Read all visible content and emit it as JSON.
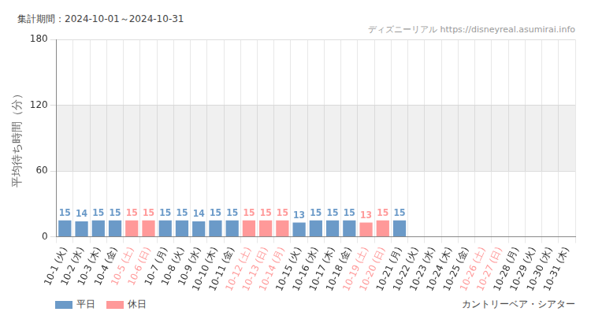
{
  "chart_data": {
    "type": "bar",
    "subtitle": "集計期間：2024-10-01～2024-10-31",
    "source": "ディズニーリアル https://disneyreal.asumirai.info",
    "title": "カントリーベア・シアター",
    "y_label": "平均待ち時間（分）",
    "categories": [
      "10-1 (火)",
      "10-2 (水)",
      "10-3 (木)",
      "10-4 (金)",
      "10-5 (土)",
      "10-6 (日)",
      "10-7 (月)",
      "10-8 (火)",
      "10-9 (水)",
      "10-10 (木)",
      "10-11 (金)",
      "10-12 (土)",
      "10-13 (日)",
      "10-14 (月)",
      "10-15 (火)",
      "10-16 (水)",
      "10-17 (木)",
      "10-18 (金)",
      "10-19 (土)",
      "10-20 (日)",
      "10-21 (月)",
      "10-22 (火)",
      "10-23 (水)",
      "10-24 (木)",
      "10-25 (金)",
      "10-26 (土)",
      "10-27 (日)",
      "10-28 (月)",
      "10-29 (火)",
      "10-30 (水)",
      "10-31 (木)"
    ],
    "holidays": [
      "10-5 (土)",
      "10-6 (日)",
      "10-12 (土)",
      "10-13 (日)",
      "10-14 (月)",
      "10-19 (土)",
      "10-20 (日)",
      "10-26 (土)",
      "10-27 (日)"
    ],
    "series": [
      {
        "name": "平日",
        "color": "#6b9ac8",
        "values": [
          15,
          14,
          15,
          15,
          null,
          null,
          15,
          15,
          14,
          15,
          15,
          null,
          null,
          null,
          13,
          15,
          15,
          15,
          null,
          null,
          15,
          null,
          null,
          null,
          null,
          null,
          null,
          null,
          null,
          null,
          null
        ]
      },
      {
        "name": "休日",
        "color": "#ff9999",
        "values": [
          null,
          null,
          null,
          null,
          15,
          15,
          null,
          null,
          null,
          null,
          null,
          15,
          15,
          15,
          null,
          null,
          null,
          null,
          13,
          15,
          null,
          null,
          null,
          null,
          null,
          null,
          null,
          null,
          null,
          null,
          null
        ]
      }
    ],
    "stacked": true,
    "ylim": [
      0,
      180
    ],
    "yticks": [
      0,
      60,
      120,
      180
    ],
    "shaded_band": [
      60,
      120
    ],
    "grid": true,
    "data_labels": true,
    "legend": "bottom-left"
  }
}
